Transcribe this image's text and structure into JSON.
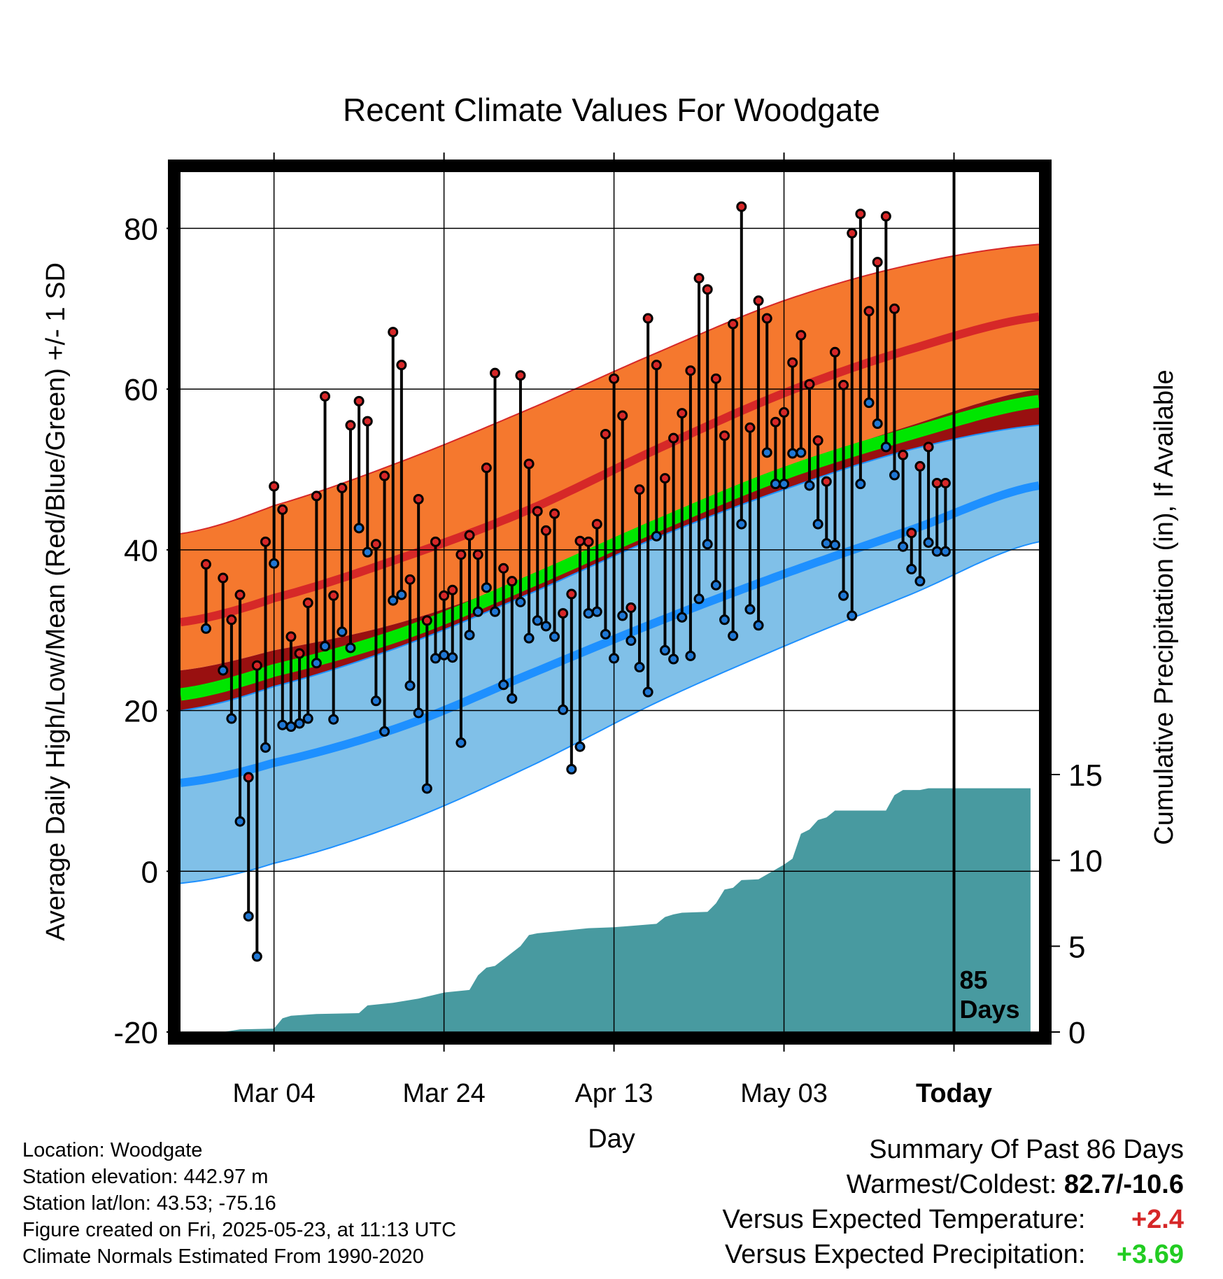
{
  "chart_data": {
    "type": "line",
    "title": "Recent Climate Values For Woodgate",
    "xlabel": "Day",
    "ylabel": "Average Daily High/Low/Mean (Red/Blue/Green) +/- 1 SD",
    "y2label": "Cumulative Precipitation (in), If Available",
    "x_ticks": [
      "Mar 04",
      "Mar 24",
      "Apr 13",
      "May 03",
      "Today"
    ],
    "x_tick_day": [
      10,
      30,
      50,
      70,
      90
    ],
    "xlim": [
      -1,
      100
    ],
    "ylim": [
      -20,
      87
    ],
    "y_ticks": [
      -20,
      0,
      20,
      40,
      60,
      80
    ],
    "y2lim": [
      0,
      15
    ],
    "y2_ticks": [
      0,
      5,
      10,
      15
    ],
    "today_day": 90,
    "today_label": [
      "85",
      "Days"
    ],
    "normals": {
      "day": [
        -1,
        10,
        25,
        40,
        55,
        70,
        85,
        100
      ],
      "high_mean": [
        31,
        34,
        39,
        45,
        52.5,
        59.5,
        65,
        69
      ],
      "high_upper": [
        42,
        45.5,
        51,
        57.5,
        64.5,
        71,
        75.5,
        78
      ],
      "high_lower": [
        25,
        27.5,
        31,
        36.5,
        43.5,
        50,
        55.5,
        60
      ],
      "mean": [
        22,
        25,
        29.5,
        36,
        43,
        49.5,
        54.5,
        58.5
      ],
      "low_mean": [
        11,
        13.5,
        18,
        24.5,
        31,
        37,
        42.5,
        48
      ],
      "low_upper": [
        20,
        23,
        28,
        34.5,
        41.5,
        47.5,
        52.5,
        55.5
      ],
      "low_lower": [
        -1.5,
        1,
        6,
        13,
        21,
        28,
        34.5,
        41
      ]
    },
    "series": [
      {
        "name": "High",
        "x": [
          2,
          4,
          5,
          6,
          7,
          8,
          9,
          10,
          11,
          12,
          13,
          14,
          15,
          16,
          17,
          18,
          19,
          20,
          21,
          22,
          23,
          24,
          25,
          26,
          27,
          28,
          29,
          30,
          31,
          32,
          33,
          34,
          35,
          36,
          37,
          38,
          39,
          40,
          41,
          42,
          43,
          44,
          45,
          46,
          47,
          48,
          49,
          50,
          51,
          52,
          53,
          54,
          55,
          56,
          57,
          58,
          59,
          60,
          61,
          62,
          63,
          64,
          65,
          66,
          67,
          68,
          69,
          70,
          71,
          72,
          73,
          74,
          75,
          76,
          77,
          78,
          79,
          80,
          81,
          82,
          83,
          84,
          85,
          86,
          87,
          88,
          89
        ],
        "values": [
          38.2,
          36.5,
          31.3,
          34.4,
          11.7,
          25.6,
          41,
          47.9,
          45,
          29.2,
          27.1,
          33.4,
          46.7,
          59.1,
          34.3,
          47.7,
          55.5,
          58.5,
          56,
          40.7,
          49.2,
          67.1,
          63,
          36.3,
          46.3,
          31.2,
          41,
          34.3,
          35,
          39.4,
          41.8,
          39.4,
          50.2,
          62,
          37.7,
          36.1,
          61.7,
          50.7,
          44.8,
          42.4,
          44.5,
          32.1,
          34.5,
          41.1,
          41,
          43.2,
          54.4,
          61.3,
          56.7,
          32.8,
          47.5,
          68.8,
          63,
          48.9,
          53.9,
          57,
          62.3,
          73.8,
          72.4,
          61.3,
          54.2,
          68.1,
          82.7,
          55.2,
          71,
          68.8,
          55.9,
          57.1,
          63.3,
          66.7,
          60.6,
          53.6,
          48.5,
          64.6,
          60.5,
          79.4,
          81.8,
          69.7,
          75.8,
          81.5,
          70,
          51.8,
          42.1,
          50.4,
          52.8,
          48.3,
          48.3
        ]
      },
      {
        "name": "Low",
        "x": [
          2,
          4,
          5,
          6,
          7,
          8,
          9,
          10,
          11,
          12,
          13,
          14,
          15,
          16,
          17,
          18,
          19,
          20,
          21,
          22,
          23,
          24,
          25,
          26,
          27,
          28,
          29,
          30,
          31,
          32,
          33,
          34,
          35,
          36,
          37,
          38,
          39,
          40,
          41,
          42,
          43,
          44,
          45,
          46,
          47,
          48,
          49,
          50,
          51,
          52,
          53,
          54,
          55,
          56,
          57,
          58,
          59,
          60,
          61,
          62,
          63,
          64,
          65,
          66,
          67,
          68,
          69,
          70,
          71,
          72,
          73,
          74,
          75,
          76,
          77,
          78,
          79,
          80,
          81,
          82,
          83,
          84,
          85,
          86,
          87,
          88,
          89
        ],
        "values": [
          30.2,
          25,
          19,
          6.2,
          -5.6,
          -10.6,
          15.4,
          38.3,
          18.2,
          18,
          18.4,
          19,
          25.9,
          28,
          18.9,
          29.8,
          27.8,
          42.7,
          39.7,
          21.2,
          17.4,
          33.7,
          34.4,
          23.1,
          19.7,
          10.3,
          26.5,
          26.9,
          26.6,
          16,
          29.4,
          32.3,
          35.3,
          32.3,
          23.2,
          21.5,
          33.5,
          29,
          31.2,
          30.5,
          29.2,
          20.1,
          12.7,
          15.5,
          32.1,
          32.3,
          29.5,
          26.5,
          31.8,
          28.7,
          25.4,
          22.3,
          41.7,
          27.5,
          26.4,
          31.6,
          26.8,
          33.9,
          40.7,
          35.6,
          31.3,
          29.3,
          43.2,
          32.6,
          30.6,
          52.1,
          48.2,
          48.2,
          52,
          52.1,
          48,
          43.2,
          40.8,
          40.6,
          34.3,
          31.8,
          48.2,
          58.3,
          55.7,
          52.8,
          49.3,
          40.4,
          37.6,
          36.1,
          40.9,
          39.8,
          39.8
        ]
      }
    ],
    "precip": {
      "day": [
        -1,
        4,
        6,
        10,
        11,
        12,
        15,
        20,
        21,
        24,
        27,
        30,
        33,
        34,
        35,
        36,
        39,
        40,
        41,
        43,
        47,
        50,
        55,
        56,
        57,
        58,
        61,
        62,
        63,
        64,
        65,
        67,
        70,
        71,
        72,
        73,
        74,
        75,
        76,
        77,
        78,
        80,
        82,
        83,
        84,
        86,
        87,
        90,
        99
      ],
      "values": [
        0,
        0,
        0.15,
        0.2,
        0.8,
        0.95,
        1.05,
        1.1,
        1.55,
        1.7,
        1.95,
        2.3,
        2.45,
        3.3,
        3.75,
        3.85,
        5,
        5.65,
        5.75,
        5.85,
        6.05,
        6.1,
        6.3,
        6.7,
        6.85,
        6.95,
        7,
        7.5,
        8.3,
        8.4,
        8.85,
        8.9,
        9.75,
        10.1,
        11.55,
        11.8,
        12.35,
        12.5,
        12.9,
        12.9,
        12.9,
        12.9,
        12.9,
        13.8,
        14.1,
        14.1,
        14.2,
        14.2,
        14.2
      ]
    },
    "colors": {
      "high_band": "#f5782e",
      "high_line": "#d62828",
      "low_band": "#80c0e8",
      "low_line": "#1e90ff",
      "mean_line": "#00e600",
      "overlap": "#991010",
      "precip": "#489aa0",
      "high_dot": "#d62728",
      "low_dot": "#1f77d4"
    }
  },
  "info": {
    "location": "Location: Woodgate",
    "elevation": "Station elevation: 442.97 m",
    "latlon": "Station lat/lon: 43.53; -75.16",
    "created": "Figure created on Fri, 2025-05-23, at 11:13 UTC",
    "normals": "Climate Normals Estimated From 1990-2020"
  },
  "summary": {
    "heading": "Summary Of Past 86 Days",
    "extremes_label": "Warmest/Coldest:",
    "extremes_value": "82.7/-10.6",
    "temp_label": "Versus Expected Temperature:",
    "temp_value": "+2.4",
    "precip_label": "Versus Expected Precipitation:",
    "precip_value": "+3.69"
  }
}
